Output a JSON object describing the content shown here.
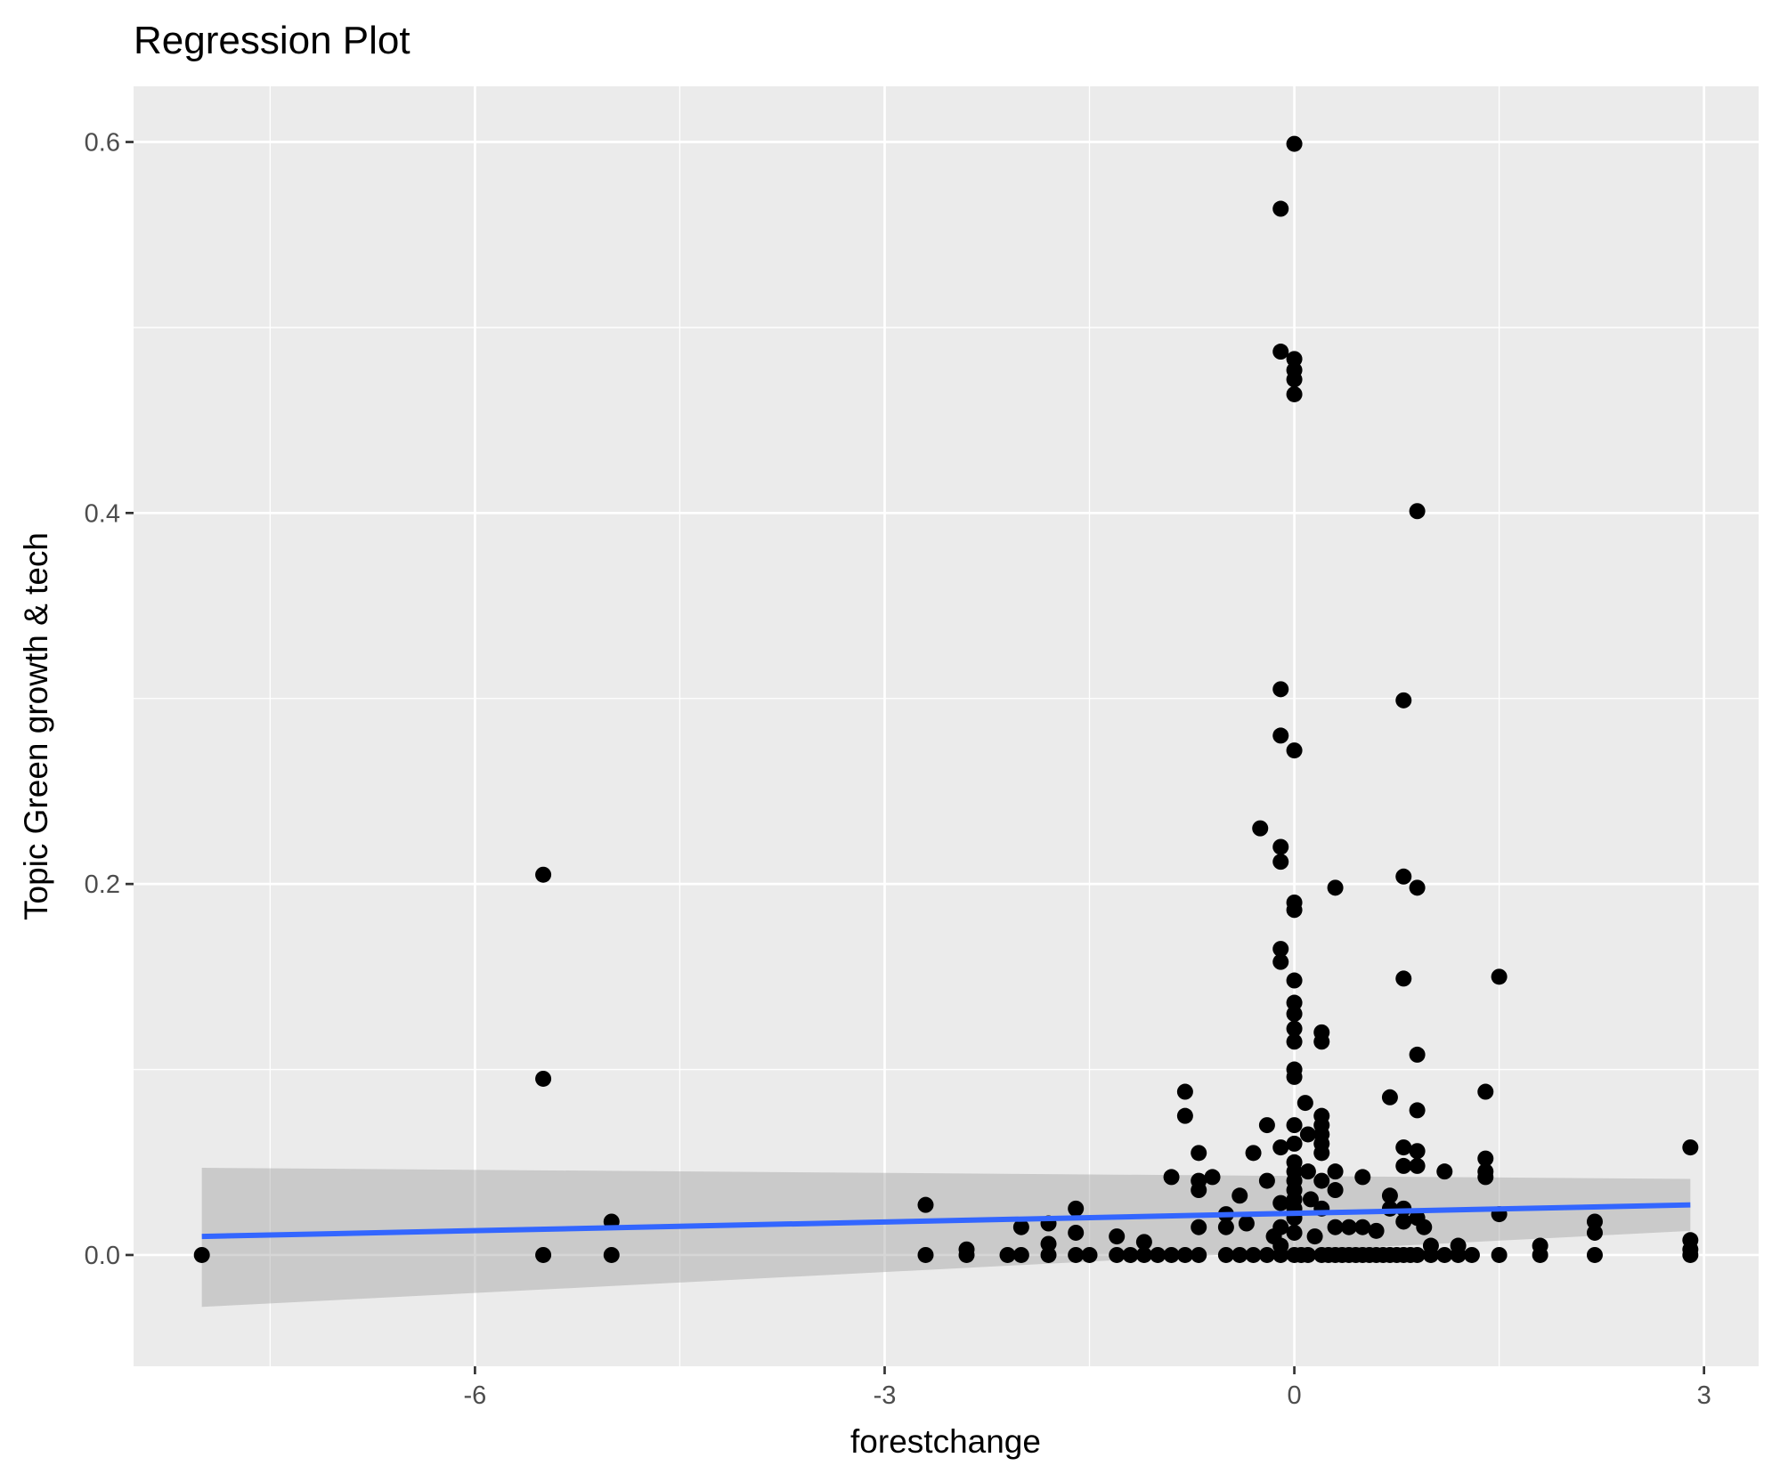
{
  "chart_data": {
    "type": "scatter",
    "title": "Regression Plot",
    "xlabel": "forestchange",
    "ylabel": "Topic Green growth & tech",
    "xlim": [
      -8.5,
      3.4
    ],
    "ylim": [
      -0.06,
      0.63
    ],
    "x_ticks": [
      -6,
      -3,
      0,
      3
    ],
    "x_tick_labels": [
      "-6",
      "-3",
      "0",
      "3"
    ],
    "x_minor_breaks": [
      -7.5,
      -4.5,
      -1.5,
      1.5
    ],
    "y_ticks": [
      0.0,
      0.2,
      0.4,
      0.6
    ],
    "y_tick_labels": [
      "0.0",
      "0.2",
      "0.4",
      "0.6"
    ],
    "y_minor_breaks": [
      0.1,
      0.3,
      0.5
    ],
    "grid": true,
    "legend": "none",
    "colors": {
      "panel": "#ebebeb",
      "grid": "#ffffff",
      "points": "#000000",
      "fit_line": "#3366ff",
      "confidence_band": "#999999"
    },
    "series": [
      {
        "type": "scatter",
        "x": [
          -8.0,
          -5.5,
          -5.5,
          -5.5,
          -5.0,
          -5.0,
          -2.7,
          -2.7,
          -2.4,
          -2.4,
          -2.1,
          -2.0,
          -2.0,
          -1.8,
          -1.8,
          -1.8,
          -1.6,
          -1.6,
          -1.6,
          -1.5,
          -1.3,
          -1.3,
          -1.2,
          -1.1,
          -1.1,
          -1.0,
          -0.9,
          -0.9,
          -0.8,
          -0.8,
          -0.8,
          -0.7,
          -0.7,
          -0.7,
          -0.7,
          -0.7,
          -0.6,
          -0.5,
          -0.5,
          -0.5,
          -0.4,
          -0.4,
          -0.35,
          -0.3,
          -0.3,
          -0.25,
          -0.2,
          -0.2,
          -0.2,
          -0.15,
          -0.1,
          -0.1,
          -0.1,
          -0.1,
          -0.1,
          -0.1,
          -0.1,
          -0.1,
          -0.1,
          -0.1,
          -0.1,
          -0.1,
          -0.1,
          0.0,
          0.0,
          0.0,
          0.0,
          0.0,
          0.0,
          0.0,
          0.0,
          0.0,
          0.0,
          0.0,
          0.0,
          0.0,
          0.0,
          0.0,
          0.0,
          0.0,
          0.0,
          0.0,
          0.0,
          0.0,
          0.0,
          0.0,
          0.0,
          0.0,
          0.0,
          0.05,
          0.08,
          0.1,
          0.1,
          0.1,
          0.12,
          0.15,
          0.2,
          0.2,
          0.2,
          0.2,
          0.2,
          0.2,
          0.2,
          0.2,
          0.2,
          0.2,
          0.25,
          0.3,
          0.3,
          0.3,
          0.3,
          0.3,
          0.35,
          0.4,
          0.4,
          0.45,
          0.5,
          0.5,
          0.5,
          0.55,
          0.6,
          0.6,
          0.65,
          0.7,
          0.7,
          0.7,
          0.7,
          0.75,
          0.8,
          0.8,
          0.8,
          0.8,
          0.8,
          0.8,
          0.8,
          0.8,
          0.85,
          0.9,
          0.9,
          0.9,
          0.9,
          0.9,
          0.9,
          0.9,
          0.9,
          0.95,
          1.0,
          1.0,
          1.1,
          1.1,
          1.2,
          1.2,
          1.3,
          1.4,
          1.4,
          1.4,
          1.4,
          1.5,
          1.5,
          1.5,
          1.8,
          1.8,
          2.2,
          2.2,
          2.2,
          2.9,
          2.9,
          2.9,
          2.9
        ],
        "y": [
          0.0,
          0.205,
          0.095,
          0.0,
          0.018,
          0.0,
          0.027,
          0.0,
          0.003,
          0.0,
          0.0,
          0.015,
          0.0,
          0.017,
          0.006,
          0.0,
          0.025,
          0.012,
          0.0,
          0.0,
          0.01,
          0.0,
          0.0,
          0.007,
          0.0,
          0.0,
          0.042,
          0.0,
          0.088,
          0.075,
          0.0,
          0.055,
          0.04,
          0.035,
          0.015,
          0.0,
          0.042,
          0.022,
          0.015,
          0.0,
          0.032,
          0.0,
          0.017,
          0.0,
          0.055,
          0.23,
          0.07,
          0.04,
          0.0,
          0.01,
          0.564,
          0.487,
          0.305,
          0.28,
          0.22,
          0.212,
          0.165,
          0.158,
          0.058,
          0.028,
          0.015,
          0.005,
          0.0,
          0.599,
          0.483,
          0.477,
          0.472,
          0.464,
          0.272,
          0.19,
          0.186,
          0.148,
          0.136,
          0.13,
          0.122,
          0.115,
          0.1,
          0.096,
          0.07,
          0.06,
          0.05,
          0.045,
          0.04,
          0.035,
          0.03,
          0.025,
          0.02,
          0.012,
          0.0,
          0.0,
          0.082,
          0.065,
          0.045,
          0.0,
          0.03,
          0.01,
          0.12,
          0.115,
          0.075,
          0.07,
          0.065,
          0.06,
          0.055,
          0.04,
          0.025,
          0.0,
          0.0,
          0.198,
          0.045,
          0.035,
          0.015,
          0.0,
          0.0,
          0.015,
          0.0,
          0.0,
          0.042,
          0.015,
          0.0,
          0.0,
          0.013,
          0.0,
          0.0,
          0.085,
          0.032,
          0.025,
          0.0,
          0.0,
          0.299,
          0.204,
          0.149,
          0.058,
          0.048,
          0.025,
          0.018,
          0.0,
          0.0,
          0.401,
          0.198,
          0.108,
          0.078,
          0.056,
          0.048,
          0.02,
          0.0,
          0.015,
          0.005,
          0.0,
          0.045,
          0.0,
          0.005,
          0.0,
          0.0,
          0.088,
          0.052,
          0.045,
          0.042,
          0.15,
          0.022,
          0.0,
          0.005,
          0.0,
          0.018,
          0.012,
          0.0,
          0.058,
          0.008,
          0.003,
          0.0
        ]
      }
    ],
    "regression": {
      "x": [
        -8.0,
        2.9
      ],
      "y": [
        0.01,
        0.027
      ],
      "ci_lower": [
        -0.028,
        0.013
      ],
      "ci_upper": [
        0.047,
        0.041
      ]
    }
  }
}
